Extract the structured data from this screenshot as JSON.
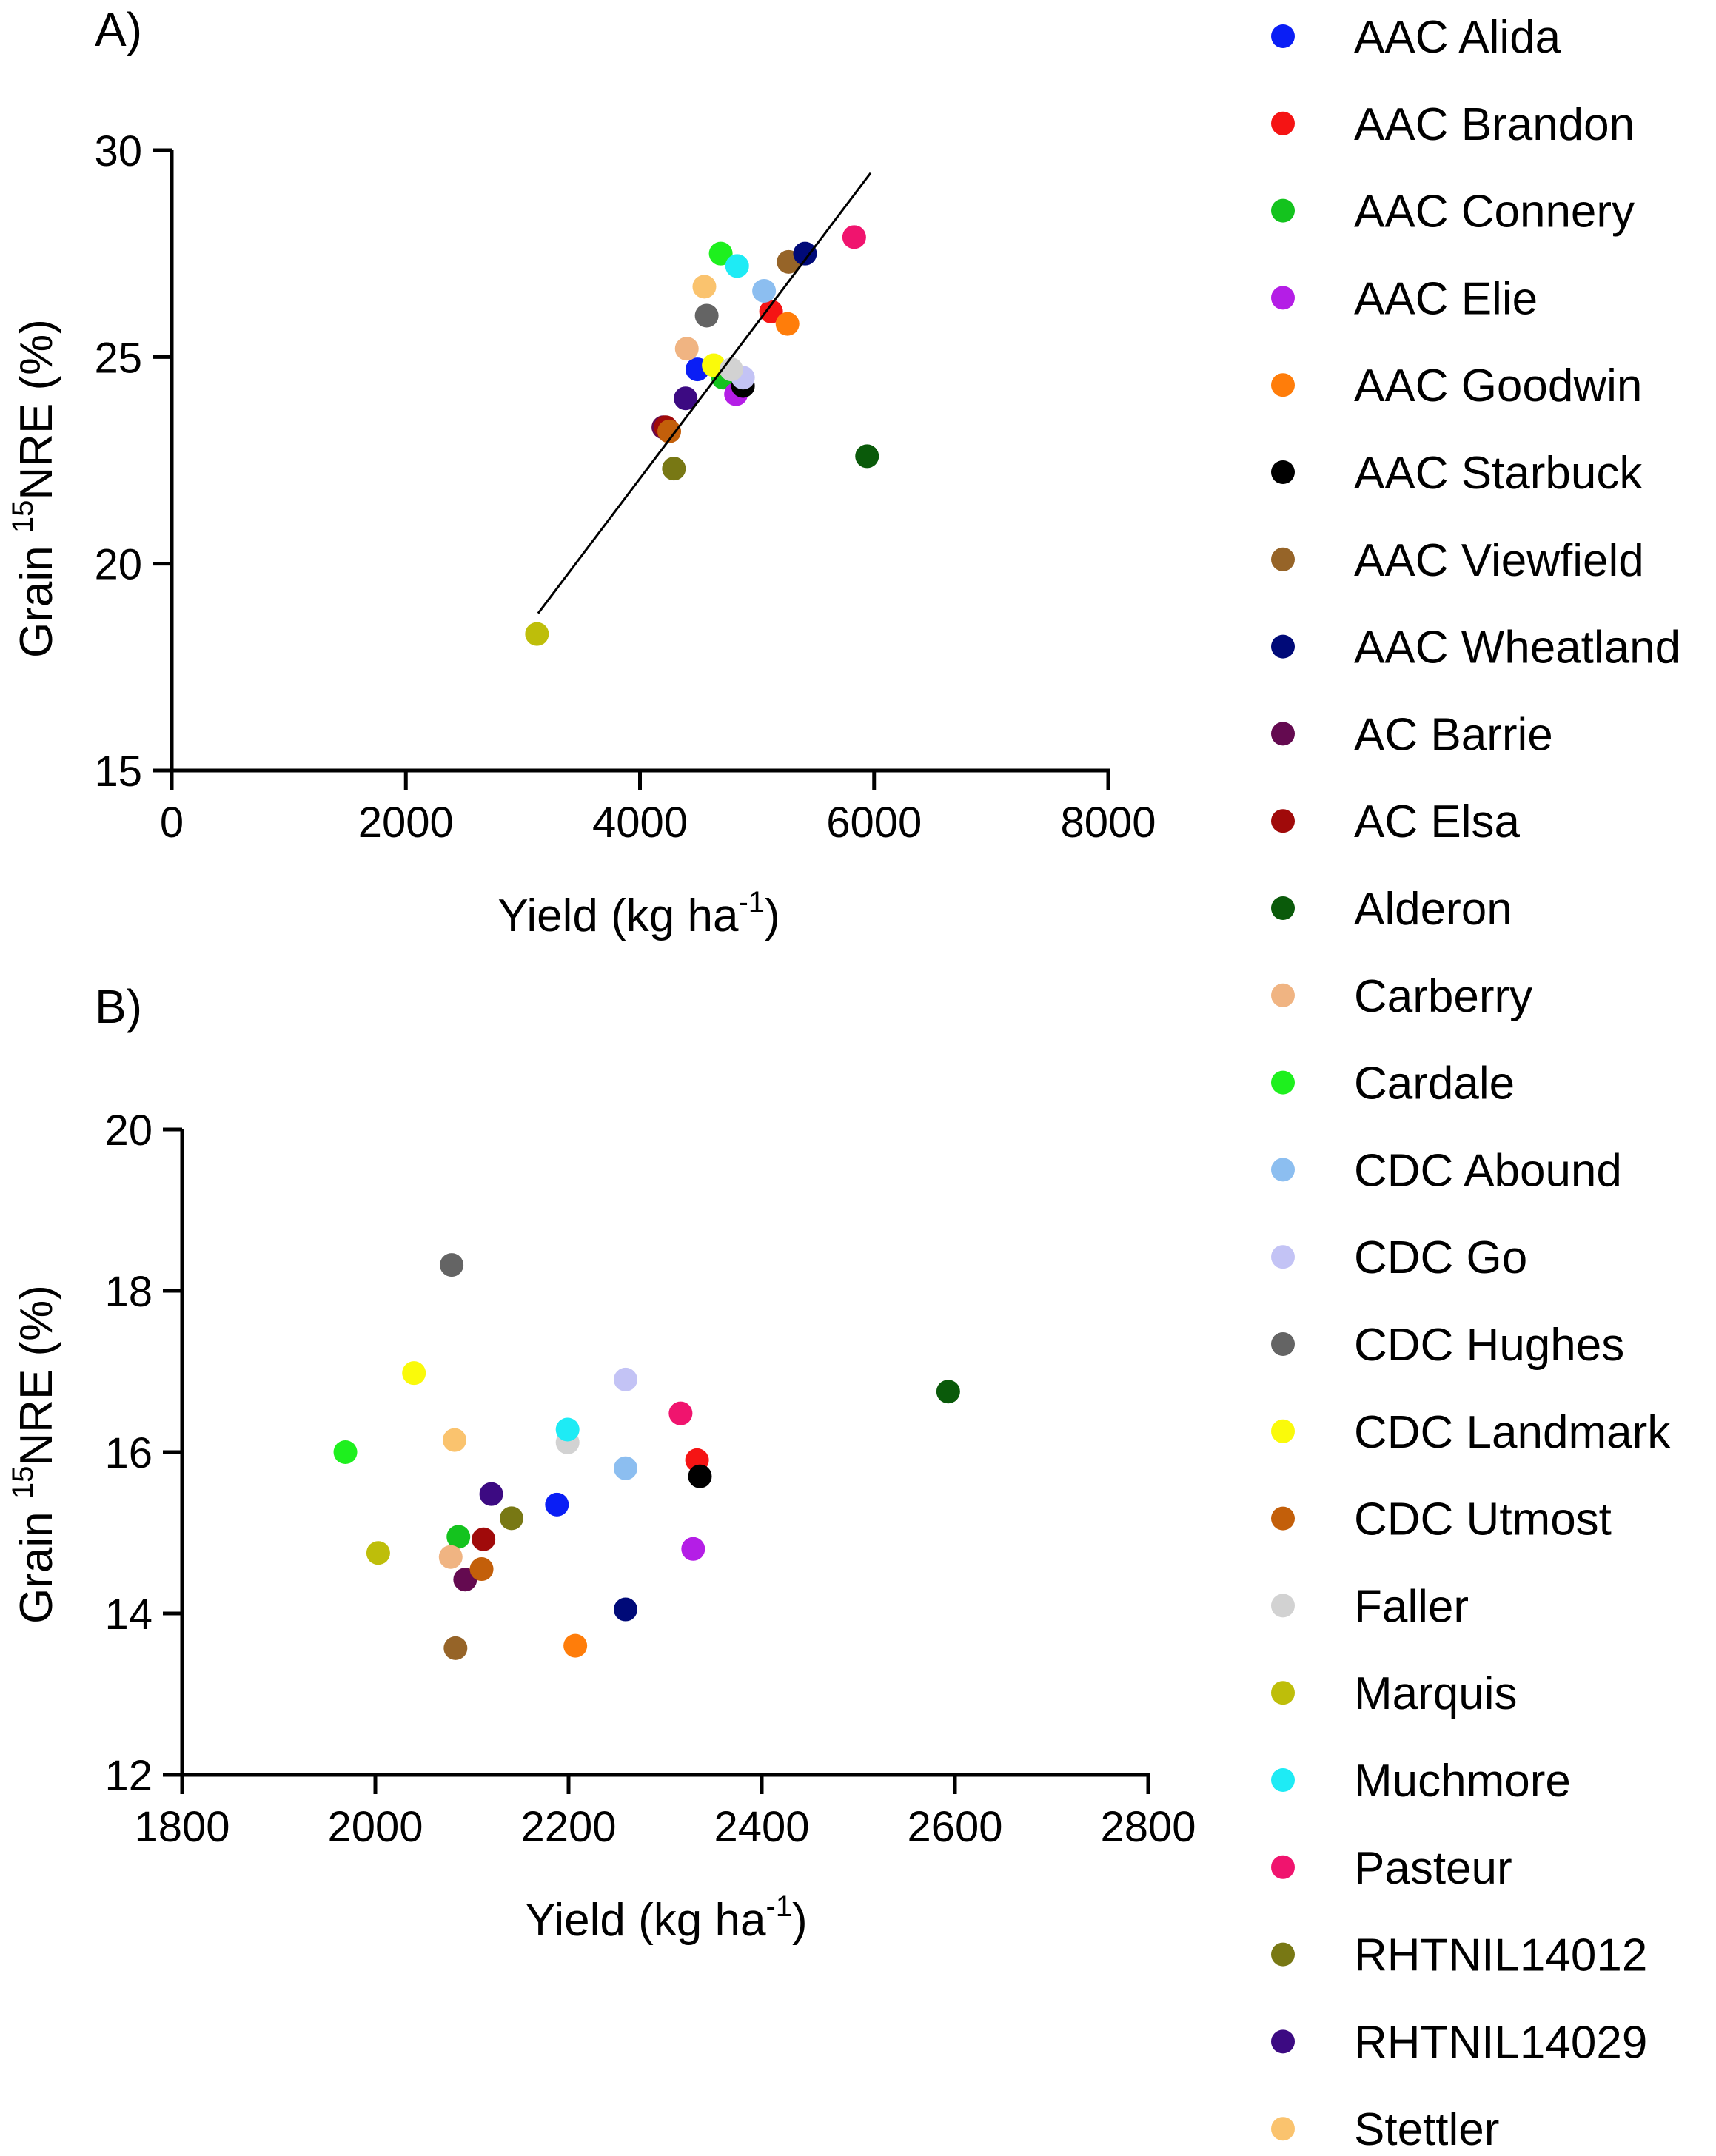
{
  "panels": {
    "a": {
      "label": "A)"
    },
    "b": {
      "label": "B)"
    }
  },
  "legend": {
    "items": [
      {
        "label": "AAC Alida",
        "color": "#0a1ef5"
      },
      {
        "label": "AAC Brandon",
        "color": "#f51414"
      },
      {
        "label": "AAC Connery",
        "color": "#14c31e"
      },
      {
        "label": "AAC Elie",
        "color": "#b41ee6"
      },
      {
        "label": "AAC Goodwin",
        "color": "#ff7d0a"
      },
      {
        "label": "AAC Starbuck",
        "color": "#000000"
      },
      {
        "label": "AAC Viewfield",
        "color": "#966428"
      },
      {
        "label": "AAC Wheatland",
        "color": "#000a78"
      },
      {
        "label": "AC Barrie",
        "color": "#640a50"
      },
      {
        "label": "AC Elsa",
        "color": "#a00a0a"
      },
      {
        "label": "Alderon",
        "color": "#0a5a0a"
      },
      {
        "label": "Carberry",
        "color": "#f0b482"
      },
      {
        "label": "Cardale",
        "color": "#1ef01e"
      },
      {
        "label": "CDC Abound",
        "color": "#8cbef0"
      },
      {
        "label": "CDC Go",
        "color": "#c3c3f5"
      },
      {
        "label": "CDC Hughes",
        "color": "#646464"
      },
      {
        "label": "CDC Landmark",
        "color": "#fafa0a"
      },
      {
        "label": "CDC Utmost",
        "color": "#c35f0a"
      },
      {
        "label": "Faller",
        "color": "#d2d2d2"
      },
      {
        "label": "Marquis",
        "color": "#bebe0a"
      },
      {
        "label": "Muchmore",
        "color": "#1eebf5"
      },
      {
        "label": "Pasteur",
        "color": "#f0146e"
      },
      {
        "label": "RHTNIL14012",
        "color": "#787814"
      },
      {
        "label": "RHTNIL14029",
        "color": "#3c0a82"
      },
      {
        "label": "Stettler",
        "color": "#fac36e"
      }
    ]
  },
  "chart_data": [
    {
      "id": "A",
      "type": "scatter",
      "title": "A)",
      "xlabel": "Yield (kg ha",
      "xlabel_sup": "-1",
      "xlabel_tail": ")",
      "ylabel_pre": "Grain ",
      "ylabel_sup": "15",
      "ylabel_post": "NRE (%)",
      "xlim": [
        0,
        8000
      ],
      "ylim": [
        15,
        30
      ],
      "xticks": [
        0,
        2000,
        4000,
        6000,
        8000
      ],
      "yticks": [
        15,
        20,
        25,
        30
      ],
      "regression": {
        "x": [
          3130,
          5970
        ],
        "y": [
          18.8,
          29.45
        ]
      },
      "points": [
        {
          "name": "AAC Alida",
          "x": 4490,
          "y": 24.7
        },
        {
          "name": "AAC Brandon",
          "x": 5120,
          "y": 26.1
        },
        {
          "name": "AAC Connery",
          "x": 4710,
          "y": 24.5
        },
        {
          "name": "AAC Elie",
          "x": 4820,
          "y": 24.1
        },
        {
          "name": "AAC Goodwin",
          "x": 5260,
          "y": 25.8
        },
        {
          "name": "AAC Starbuck",
          "x": 4880,
          "y": 24.3
        },
        {
          "name": "AAC Viewfield",
          "x": 5270,
          "y": 27.3
        },
        {
          "name": "AAC Wheatland",
          "x": 5410,
          "y": 27.5
        },
        {
          "name": "AC Barrie",
          "x": 4200,
          "y": 23.3
        },
        {
          "name": "AC Elsa",
          "x": 4220,
          "y": 23.3
        },
        {
          "name": "Alderon",
          "x": 5940,
          "y": 22.6
        },
        {
          "name": "Carberry",
          "x": 4400,
          "y": 25.2
        },
        {
          "name": "Cardale",
          "x": 4690,
          "y": 27.5
        },
        {
          "name": "CDC Abound",
          "x": 5060,
          "y": 26.6
        },
        {
          "name": "CDC Go",
          "x": 4880,
          "y": 24.5
        },
        {
          "name": "CDC Hughes",
          "x": 4570,
          "y": 26.0
        },
        {
          "name": "CDC Landmark",
          "x": 4630,
          "y": 24.8
        },
        {
          "name": "CDC Utmost",
          "x": 4250,
          "y": 23.2
        },
        {
          "name": "Faller",
          "x": 4780,
          "y": 24.7
        },
        {
          "name": "Marquis",
          "x": 3120,
          "y": 18.3
        },
        {
          "name": "Muchmore",
          "x": 4830,
          "y": 27.2
        },
        {
          "name": "Pasteur",
          "x": 5830,
          "y": 27.9
        },
        {
          "name": "RHTNIL14012",
          "x": 4290,
          "y": 22.3
        },
        {
          "name": "RHTNIL14029",
          "x": 4390,
          "y": 24.0
        },
        {
          "name": "Stettler",
          "x": 4550,
          "y": 26.7
        }
      ]
    },
    {
      "id": "B",
      "type": "scatter",
      "title": "B)",
      "xlabel": "Yield (kg ha",
      "xlabel_sup": "-1",
      "xlabel_tail": ")",
      "ylabel_pre": "Grain ",
      "ylabel_sup": "15",
      "ylabel_post": "NRE (%)",
      "xlim": [
        1800,
        2800
      ],
      "ylim": [
        12,
        20
      ],
      "xticks": [
        1800,
        2000,
        2200,
        2400,
        2600,
        2800
      ],
      "yticks": [
        12,
        14,
        16,
        18,
        20
      ],
      "points": [
        {
          "name": "AAC Alida",
          "x": 2188,
          "y": 15.35
        },
        {
          "name": "AAC Brandon",
          "x": 2333,
          "y": 15.9
        },
        {
          "name": "AAC Connery",
          "x": 2086,
          "y": 14.95
        },
        {
          "name": "AAC Elie",
          "x": 2329,
          "y": 14.8
        },
        {
          "name": "AAC Goodwin",
          "x": 2207,
          "y": 13.6
        },
        {
          "name": "AAC Starbuck",
          "x": 2336,
          "y": 15.7
        },
        {
          "name": "AAC Viewfield",
          "x": 2083,
          "y": 13.57
        },
        {
          "name": "AAC Wheatland",
          "x": 2259,
          "y": 14.05
        },
        {
          "name": "AC Barrie",
          "x": 2093,
          "y": 14.42
        },
        {
          "name": "AC Elsa",
          "x": 2112,
          "y": 14.92
        },
        {
          "name": "Alderon",
          "x": 2593,
          "y": 16.75
        },
        {
          "name": "Carberry",
          "x": 2078,
          "y": 14.7
        },
        {
          "name": "Cardale",
          "x": 1969,
          "y": 16.0
        },
        {
          "name": "CDC Abound",
          "x": 2259,
          "y": 15.8
        },
        {
          "name": "CDC Go",
          "x": 2259,
          "y": 16.9
        },
        {
          "name": "CDC Hughes",
          "x": 2079,
          "y": 18.32
        },
        {
          "name": "CDC Landmark",
          "x": 2040,
          "y": 16.98
        },
        {
          "name": "CDC Utmost",
          "x": 2110,
          "y": 14.55
        },
        {
          "name": "Faller",
          "x": 2199,
          "y": 16.12
        },
        {
          "name": "Marquis",
          "x": 2003,
          "y": 14.75
        },
        {
          "name": "Muchmore",
          "x": 2199,
          "y": 16.28
        },
        {
          "name": "Pasteur",
          "x": 2316,
          "y": 16.48
        },
        {
          "name": "RHTNIL14012",
          "x": 2141,
          "y": 15.18
        },
        {
          "name": "RHTNIL14029",
          "x": 2120,
          "y": 15.48
        },
        {
          "name": "Stettler",
          "x": 2082,
          "y": 16.15
        }
      ]
    }
  ]
}
